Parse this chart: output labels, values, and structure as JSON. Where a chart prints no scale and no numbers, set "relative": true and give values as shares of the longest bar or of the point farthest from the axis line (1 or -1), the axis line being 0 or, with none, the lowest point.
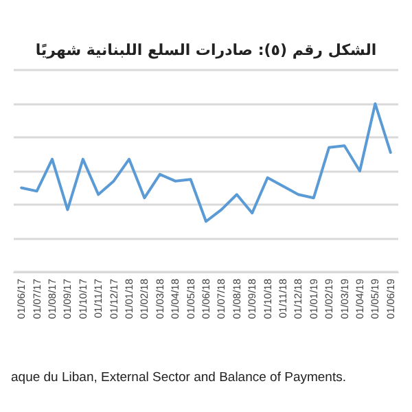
{
  "chart_data": {
    "type": "line",
    "title": "الشكل رقم (٥): صادرات السلع اللبنانية شهريًا",
    "categories": [
      "01/06/17",
      "01/07/17",
      "01/08/17",
      "01/09/17",
      "01/10/17",
      "01/11/17",
      "01/12/17",
      "01/01/18",
      "01/02/18",
      "01/03/18",
      "01/04/18",
      "01/05/18",
      "01/06/18",
      "01/07/18",
      "01/08/18",
      "01/09/18",
      "01/10/18",
      "01/11/18",
      "01/12/18",
      "01/01/19",
      "01/02/19",
      "01/03/19",
      "01/04/19",
      "01/05/19",
      "01/06/19"
    ],
    "series": [
      {
        "color": "#5b9bd5",
        "values": [
          0.5,
          0.48,
          0.67,
          0.37,
          0.67,
          0.46,
          0.54,
          0.67,
          0.44,
          0.58,
          0.54,
          0.55,
          0.3,
          0.37,
          0.46,
          0.35,
          0.56,
          0.51,
          0.46,
          0.44,
          0.74,
          0.75,
          0.6,
          1.0,
          0.71
        ]
      }
    ],
    "relative": true,
    "grid": "y",
    "marker": "none",
    "line_style": "solid",
    "annotations": [
      "aque du Liban, External Sector and Balance of Payments."
    ]
  }
}
